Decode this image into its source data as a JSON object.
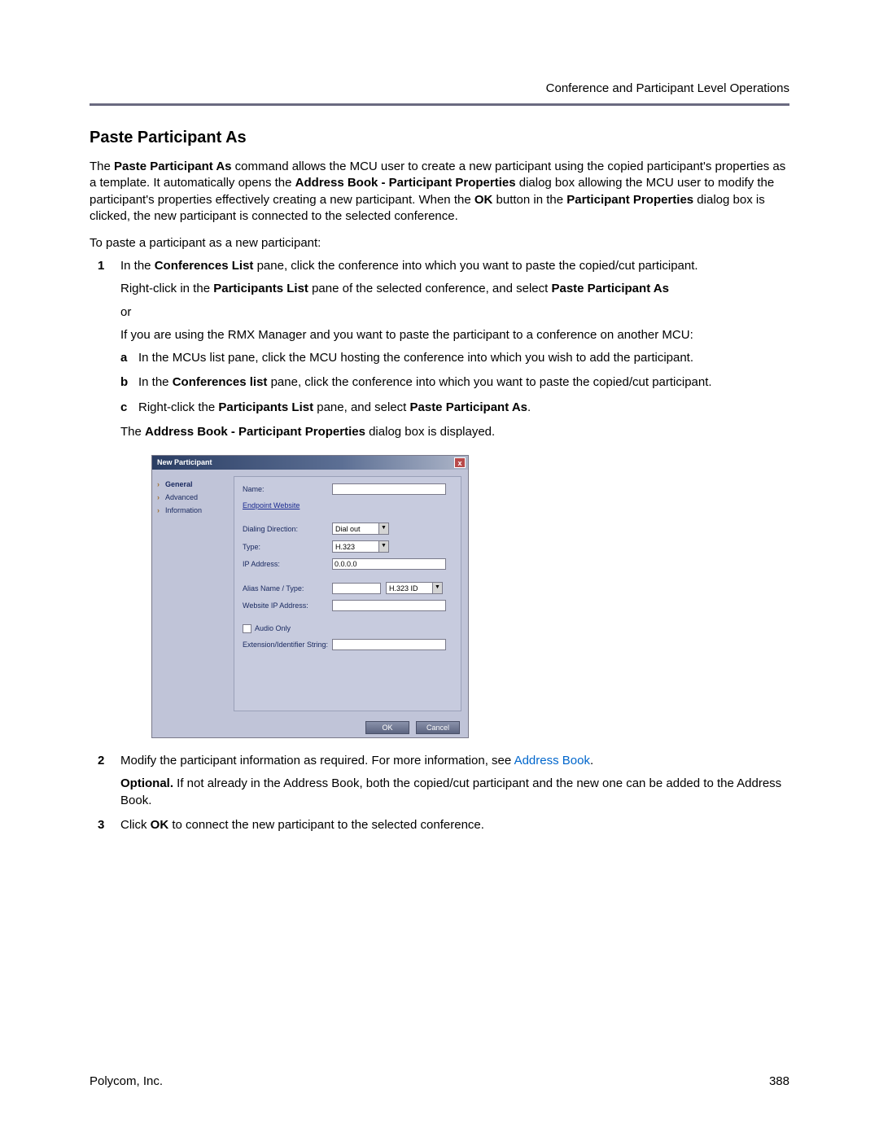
{
  "header": {
    "section": "Conference and Participant Level Operations"
  },
  "title": "Paste Participant As",
  "intro": {
    "pre": "The ",
    "b1": "Paste Participant As",
    "mid1": " command allows the MCU user to create a new participant using the copied participant's properties as a template. It automatically opens the ",
    "b2": "Address Book - Participant Properties",
    "mid2": " dialog box allowing the MCU user to modify the participant's properties effectively creating a new participant. When the ",
    "b3": "OK",
    "mid3": " button in the ",
    "b4": "Participant Properties",
    "mid4": " dialog box is clicked, the new participant is connected to the selected conference."
  },
  "list_intro": "To paste a participant as a new participant:",
  "step1": {
    "num": "1",
    "pre": "In the ",
    "b1": "Conferences List",
    "post": " pane, click the conference into which you want to paste the copied/cut participant.",
    "p2_pre": "Right-click in the ",
    "p2_b1": "Participants List",
    "p2_mid": " pane of the selected conference, and select ",
    "p2_b2": "Paste Participant As",
    "or": "or",
    "p3": "If you are using the RMX Manager and you want to paste the participant to a conference on another MCU:",
    "a": {
      "alpha": "a",
      "text": "In the MCUs list pane, click the MCU hosting the conference into which you wish to add the participant."
    },
    "b": {
      "alpha": "b",
      "pre": "In the ",
      "b1": "Conferences list",
      "post": " pane, click the conference into which you want to paste the copied/cut participant."
    },
    "c": {
      "alpha": "c",
      "pre": "Right-click the ",
      "b1": "Participants List",
      "mid": " pane, and select ",
      "b2": "Paste Participant As",
      "post": "."
    },
    "p4_pre": "The ",
    "p4_b": "Address Book - Participant Properties",
    "p4_post": " dialog box is displayed."
  },
  "dialog": {
    "title": "New Participant",
    "close": "x",
    "sidebar": {
      "general": "General",
      "advanced": "Advanced",
      "info": "Information"
    },
    "labels": {
      "name": "Name:",
      "endpoint_link": "Endpoint Website",
      "dialing": "Dialing Direction:",
      "type": "Type:",
      "ip": "IP Address:",
      "alias": "Alias Name / Type:",
      "website_ip": "Website IP Address:",
      "audio_only": "Audio Only",
      "ext": "Extension/Identifier String:"
    },
    "values": {
      "dialing": "Dial out",
      "type": "H.323",
      "ip": "0.0.0.0",
      "alias_type": "H.323 ID"
    },
    "buttons": {
      "ok": "OK",
      "cancel": "Cancel"
    }
  },
  "step2": {
    "num": "2",
    "text": "Modify the participant information as required. For more information, see ",
    "link": "Address Book",
    "post": ".",
    "opt_b": "Optional.",
    "opt_text": " If not already in the Address Book, both the copied/cut participant and the new one can be added to the Address Book."
  },
  "step3": {
    "num": "3",
    "pre": "Click ",
    "b": "OK",
    "post": " to connect the new participant to the selected conference."
  },
  "footer": {
    "company": "Polycom, Inc.",
    "page": "388"
  }
}
